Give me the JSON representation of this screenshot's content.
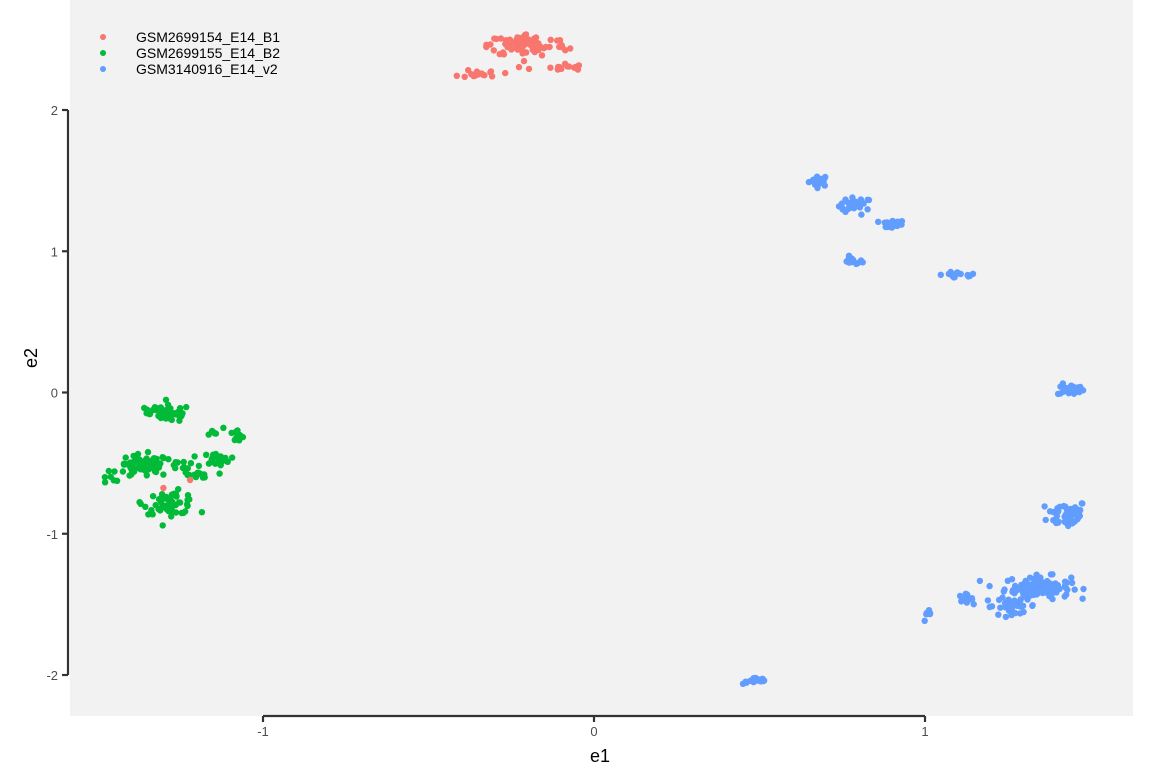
{
  "chart_data": {
    "type": "scatter",
    "xlabel": "e1",
    "ylabel": "e2",
    "xlim": [
      -1.6,
      1.63
    ],
    "ylim": [
      -2.3,
      2.6
    ],
    "x_ticks": [
      -1,
      0,
      1
    ],
    "x_tick_labels": [
      "-1",
      "0",
      "1"
    ],
    "y_ticks": [
      -2,
      -1,
      0,
      1,
      2
    ],
    "y_tick_labels": [
      "-2",
      "-1",
      "0",
      "1",
      "2"
    ],
    "grid": false,
    "legend_position": "top-left",
    "background": "#f2f2f2",
    "series": [
      {
        "name": "GSM2699154_E14_B1",
        "color": "#f8766d",
        "clusters": [
          {
            "cx": -0.2,
            "cy": 2.46,
            "sx": 0.06,
            "sy": 0.04,
            "n": 90
          },
          {
            "cx": -0.11,
            "cy": 2.3,
            "sx": 0.04,
            "sy": 0.015,
            "n": 15
          },
          {
            "cx": -0.06,
            "cy": 2.31,
            "sx": 0.01,
            "sy": 0.01,
            "n": 2
          },
          {
            "cx": -0.34,
            "cy": 2.26,
            "sx": 0.03,
            "sy": 0.015,
            "n": 15
          },
          {
            "cx": -1.3,
            "cy": -0.68,
            "sx": 0.01,
            "sy": 0.01,
            "n": 1
          },
          {
            "cx": -1.22,
            "cy": -0.61,
            "sx": 0.01,
            "sy": 0.01,
            "n": 1
          }
        ]
      },
      {
        "name": "GSM2699155_E14_B2",
        "color": "#00ba38",
        "clusters": [
          {
            "cx": -1.28,
            "cy": -0.15,
            "sx": 0.03,
            "sy": 0.03,
            "n": 45
          },
          {
            "cx": -1.35,
            "cy": -0.13,
            "sx": 0.02,
            "sy": 0.02,
            "n": 6
          },
          {
            "cx": -1.36,
            "cy": -0.52,
            "sx": 0.04,
            "sy": 0.04,
            "n": 70
          },
          {
            "cx": -1.24,
            "cy": -0.5,
            "sx": 0.03,
            "sy": 0.025,
            "n": 12
          },
          {
            "cx": -1.28,
            "cy": -0.78,
            "sx": 0.04,
            "sy": 0.04,
            "n": 55
          },
          {
            "cx": -1.21,
            "cy": -0.59,
            "sx": 0.025,
            "sy": 0.02,
            "n": 14
          },
          {
            "cx": -1.14,
            "cy": -0.47,
            "sx": 0.02,
            "sy": 0.02,
            "n": 22
          },
          {
            "cx": -1.15,
            "cy": -0.28,
            "sx": 0.015,
            "sy": 0.015,
            "n": 6
          },
          {
            "cx": -1.08,
            "cy": -0.31,
            "sx": 0.015,
            "sy": 0.025,
            "n": 10
          },
          {
            "cx": -1.47,
            "cy": -0.63,
            "sx": 0.02,
            "sy": 0.02,
            "n": 4
          }
        ]
      },
      {
        "name": "GSM3140916_E14_v2",
        "color": "#619cff",
        "clusters": [
          {
            "cx": 0.68,
            "cy": 1.5,
            "sx": 0.015,
            "sy": 0.02,
            "n": 22
          },
          {
            "cx": 0.79,
            "cy": 1.32,
            "sx": 0.025,
            "sy": 0.03,
            "n": 28
          },
          {
            "cx": 0.9,
            "cy": 1.19,
            "sx": 0.02,
            "sy": 0.015,
            "n": 18
          },
          {
            "cx": 0.78,
            "cy": 0.93,
            "sx": 0.015,
            "sy": 0.015,
            "n": 14
          },
          {
            "cx": 1.1,
            "cy": 0.83,
            "sx": 0.03,
            "sy": 0.012,
            "n": 16
          },
          {
            "cx": 1.44,
            "cy": 0.02,
            "sx": 0.02,
            "sy": 0.02,
            "n": 20
          },
          {
            "cx": 1.43,
            "cy": -0.86,
            "sx": 0.03,
            "sy": 0.05,
            "n": 50
          },
          {
            "cx": 1.34,
            "cy": -1.38,
            "sx": 0.05,
            "sy": 0.04,
            "n": 110
          },
          {
            "cx": 1.26,
            "cy": -1.51,
            "sx": 0.04,
            "sy": 0.03,
            "n": 30
          },
          {
            "cx": 1.12,
            "cy": -1.46,
            "sx": 0.012,
            "sy": 0.015,
            "n": 10
          },
          {
            "cx": 1.01,
            "cy": -1.58,
            "sx": 0.008,
            "sy": 0.02,
            "n": 8
          },
          {
            "cx": 0.49,
            "cy": -2.04,
            "sx": 0.02,
            "sy": 0.012,
            "n": 18
          }
        ]
      }
    ]
  }
}
